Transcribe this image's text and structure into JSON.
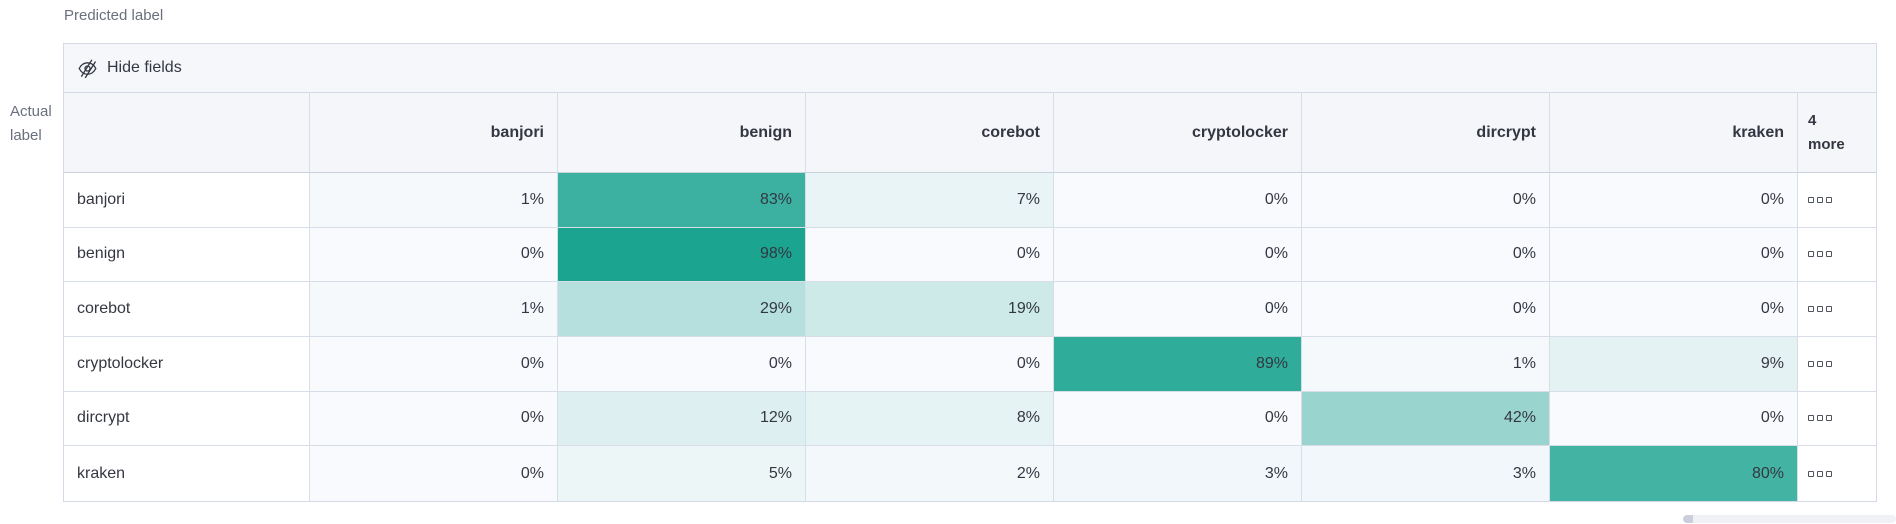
{
  "labels": {
    "predicted": "Predicted label",
    "actual_line1": "Actual",
    "actual_line2": "label"
  },
  "toolbar": {
    "hide_fields_label": "Hide fields",
    "icon": "eye-closed"
  },
  "matrix": {
    "columns": [
      "banjori",
      "benign",
      "corebot",
      "cryptolocker",
      "dircrypt",
      "kraken"
    ],
    "more_column_header": {
      "line1": "4",
      "line2": "more"
    },
    "row_actions_icon": "boxes-horizontal",
    "value_suffix": "%",
    "rows": [
      {
        "label": "banjori",
        "values": [
          1,
          83,
          7,
          0,
          0,
          0
        ]
      },
      {
        "label": "benign",
        "values": [
          0,
          98,
          0,
          0,
          0,
          0
        ]
      },
      {
        "label": "corebot",
        "values": [
          1,
          29,
          19,
          0,
          0,
          0
        ]
      },
      {
        "label": "cryptolocker",
        "values": [
          0,
          0,
          0,
          89,
          1,
          9
        ]
      },
      {
        "label": "dircrypt",
        "values": [
          0,
          12,
          8,
          0,
          42,
          0
        ]
      },
      {
        "label": "kraken",
        "values": [
          0,
          5,
          2,
          3,
          3,
          80
        ]
      }
    ],
    "heat_scale": {
      "low": "#F8FAFD",
      "high": "#16A28E"
    }
  },
  "colors": {
    "border": "#D8DEE8",
    "header_bg": "#F4F6FA",
    "toolbar_bg": "#F5F7FB",
    "text": "#343741",
    "muted_text": "#69707D"
  }
}
